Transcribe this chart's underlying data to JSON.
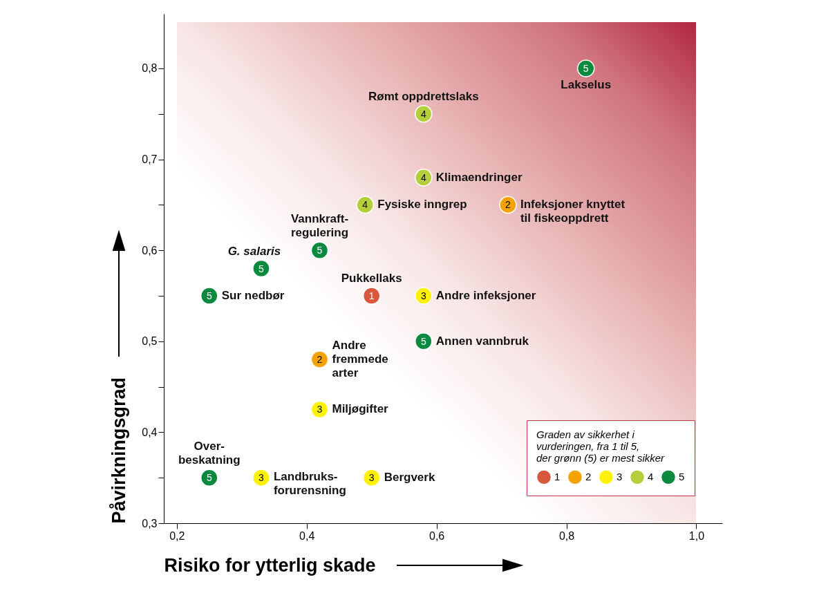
{
  "chart_data": {
    "type": "scatter",
    "xlabel": "Risiko for ytterlig skade",
    "ylabel": "Påvirkningsgrad",
    "legend_title": "Graden av sikkerhet i vurderingen, fra 1 til 5, der grønn (5) er mest sikker",
    "legend": "bottom right",
    "marker": "circle",
    "xlim": [
      0.18,
      1.04
    ],
    "ylim": [
      0.3,
      0.86
    ],
    "xticks": [
      {
        "value": 0.2,
        "label": "0,2"
      },
      {
        "value": 0.4,
        "label": "0,4"
      },
      {
        "value": 0.6,
        "label": "0,6"
      },
      {
        "value": 0.8,
        "label": "0,8"
      },
      {
        "value": 1.0,
        "label": "1,0"
      }
    ],
    "yticks": [
      {
        "value": 0.3,
        "label": "0,3"
      },
      {
        "value": 0.35,
        "label": null
      },
      {
        "value": 0.4,
        "label": "0,4"
      },
      {
        "value": 0.45,
        "label": null
      },
      {
        "value": 0.5,
        "label": "0,5"
      },
      {
        "value": 0.55,
        "label": null
      },
      {
        "value": 0.6,
        "label": "0,6"
      },
      {
        "value": 0.65,
        "label": null
      },
      {
        "value": 0.7,
        "label": "0,7"
      },
      {
        "value": 0.75,
        "label": null
      },
      {
        "value": 0.8,
        "label": "0,8"
      }
    ],
    "series": [
      {
        "name": "1",
        "color": "#d9573f",
        "x": [
          0.5
        ],
        "values": [
          0.55
        ]
      },
      {
        "name": "2",
        "color": "#f5a100",
        "x": [
          0.71,
          0.42
        ],
        "values": [
          0.65,
          0.48
        ]
      },
      {
        "name": "3",
        "color": "#fff200",
        "x": [
          0.58,
          0.42,
          0.33,
          0.5
        ],
        "values": [
          0.55,
          0.425,
          0.35,
          0.35
        ]
      },
      {
        "name": "4",
        "color": "#b5cf3a",
        "x": [
          0.58,
          0.58,
          0.49
        ],
        "values": [
          0.75,
          0.68,
          0.65
        ]
      },
      {
        "name": "5",
        "color": "#0a8a3f",
        "x": [
          0.83,
          0.42,
          0.33,
          0.25,
          0.58,
          0.25
        ],
        "values": [
          0.8,
          0.6,
          0.58,
          0.55,
          0.5,
          0.35
        ]
      }
    ],
    "annotations": [
      {
        "text": "Lakselus",
        "x": 0.83,
        "y": 0.8
      },
      {
        "text": "Rømt oppdrettslaks",
        "x": 0.58,
        "y": 0.75
      },
      {
        "text": "Klimaendringer",
        "x": 0.58,
        "y": 0.68
      },
      {
        "text": "Fysiske inngrep",
        "x": 0.49,
        "y": 0.65
      },
      {
        "text": "Infeksjoner knyttet til fiskeoppdrett",
        "x": 0.71,
        "y": 0.65
      },
      {
        "text": "Vannkraft-regulering",
        "x": 0.42,
        "y": 0.6
      },
      {
        "text": "G. salaris",
        "x": 0.33,
        "y": 0.58
      },
      {
        "text": "Sur nedbør",
        "x": 0.25,
        "y": 0.55
      },
      {
        "text": "Pukkellaks",
        "x": 0.5,
        "y": 0.55
      },
      {
        "text": "Andre infeksjoner",
        "x": 0.58,
        "y": 0.55
      },
      {
        "text": "Annen vannbruk",
        "x": 0.58,
        "y": 0.5
      },
      {
        "text": "Andre fremmede arter",
        "x": 0.42,
        "y": 0.48
      },
      {
        "text": "Miljøgifter",
        "x": 0.42,
        "y": 0.425
      },
      {
        "text": "Over-beskatning",
        "x": 0.25,
        "y": 0.35
      },
      {
        "text": "Landbruks-forurensning",
        "x": 0.33,
        "y": 0.35
      },
      {
        "text": "Bergverk",
        "x": 0.5,
        "y": 0.35
      }
    ]
  }
}
